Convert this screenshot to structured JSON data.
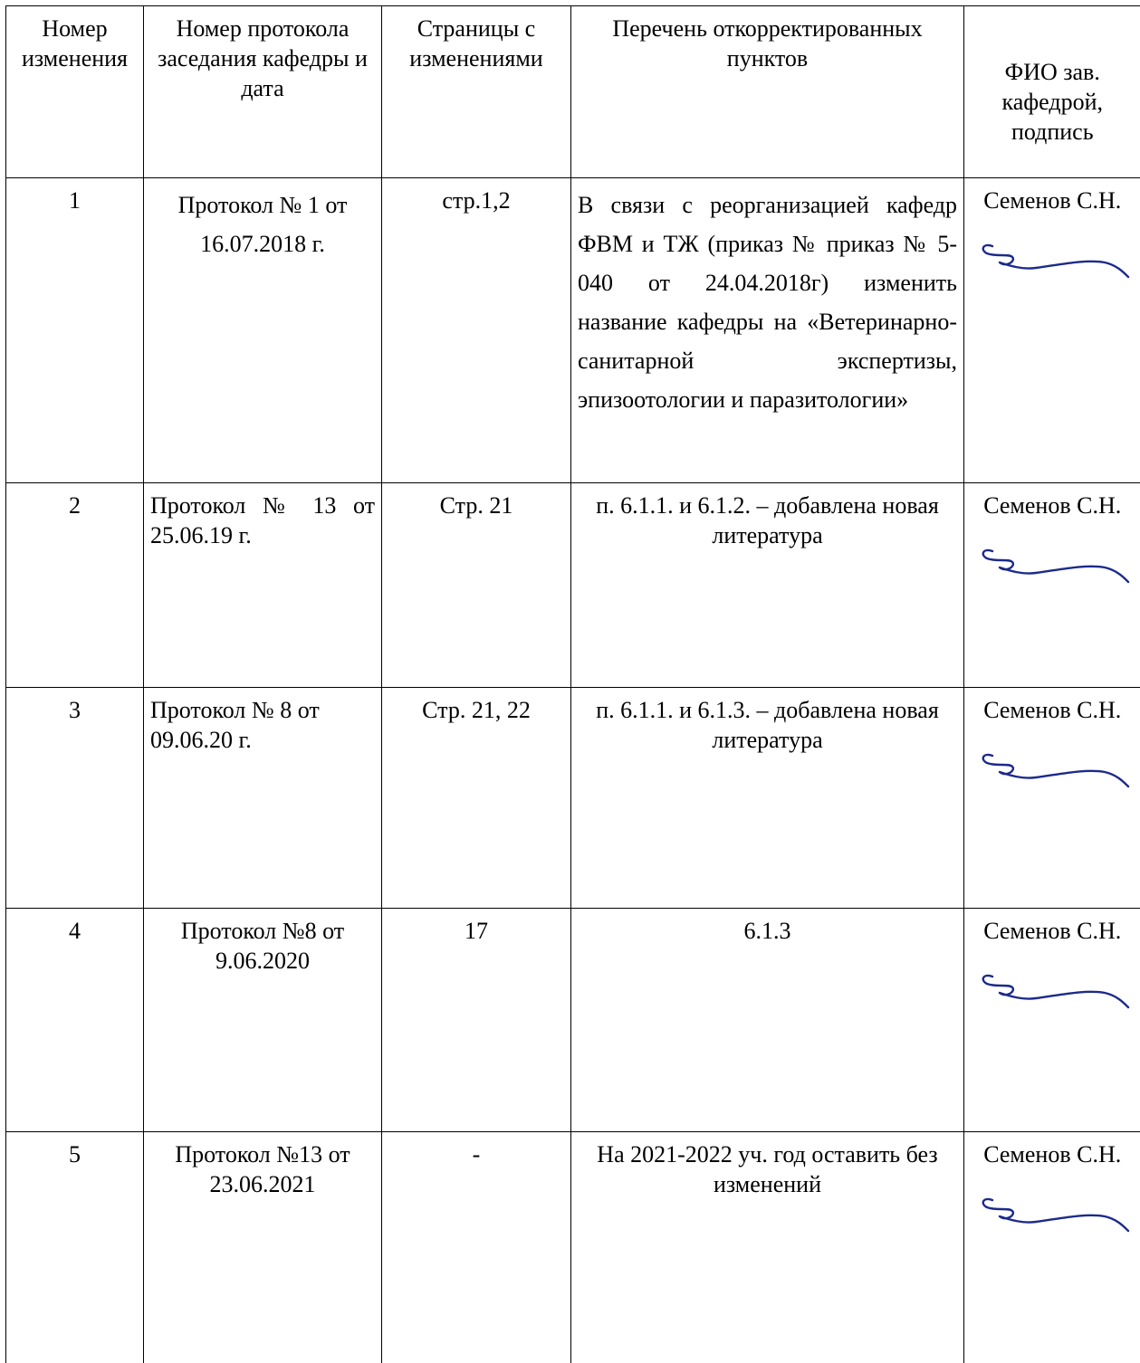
{
  "table": {
    "headers": {
      "num": "Номер изменения",
      "protocol": "Номер протокола заседания кафедры и дата",
      "pages": "Страницы с изменениями",
      "items": "Перечень откорректированных пунктов",
      "sign": "ФИО зав. кафедрой, подпись"
    },
    "rows": [
      {
        "num": "1",
        "protocol": "Протокол № 1 от 16.07.2018 г.",
        "pages": "стр.1,2",
        "items": "В связи с реорганизацией кафедр ФВМ и ТЖ (приказ № приказ № 5-040 от 24.04.2018г) изменить название кафедры на «Ветеринарно- санитарной экспертизы, эпизоотологии и паразитологии»",
        "signer": "Семенов С.Н."
      },
      {
        "num": "2",
        "protocol": "Протокол № 13 от 25.06.19 г.",
        "pages": "Стр. 21",
        "items": "п. 6.1.1. и 6.1.2. – добавлена новая литература",
        "signer": "Семенов С.Н."
      },
      {
        "num": "3",
        "protocol": "Протокол № 8 от 09.06.20 г.",
        "pages": "Стр. 21, 22",
        "items": "п. 6.1.1. и 6.1.3. – добавлена новая литература",
        "signer": "Семенов С.Н."
      },
      {
        "num": "4",
        "protocol": "Протокол №8 от 9.06.2020",
        "pages": "17",
        "items": "6.1.3",
        "signer": "Семенов С.Н."
      },
      {
        "num": "5",
        "protocol": "Протокол №13 от 23.06.2021",
        "pages": "-",
        "items": "На 2021-2022 уч. год оставить без изменений",
        "signer": "Семенов С.Н."
      }
    ]
  }
}
